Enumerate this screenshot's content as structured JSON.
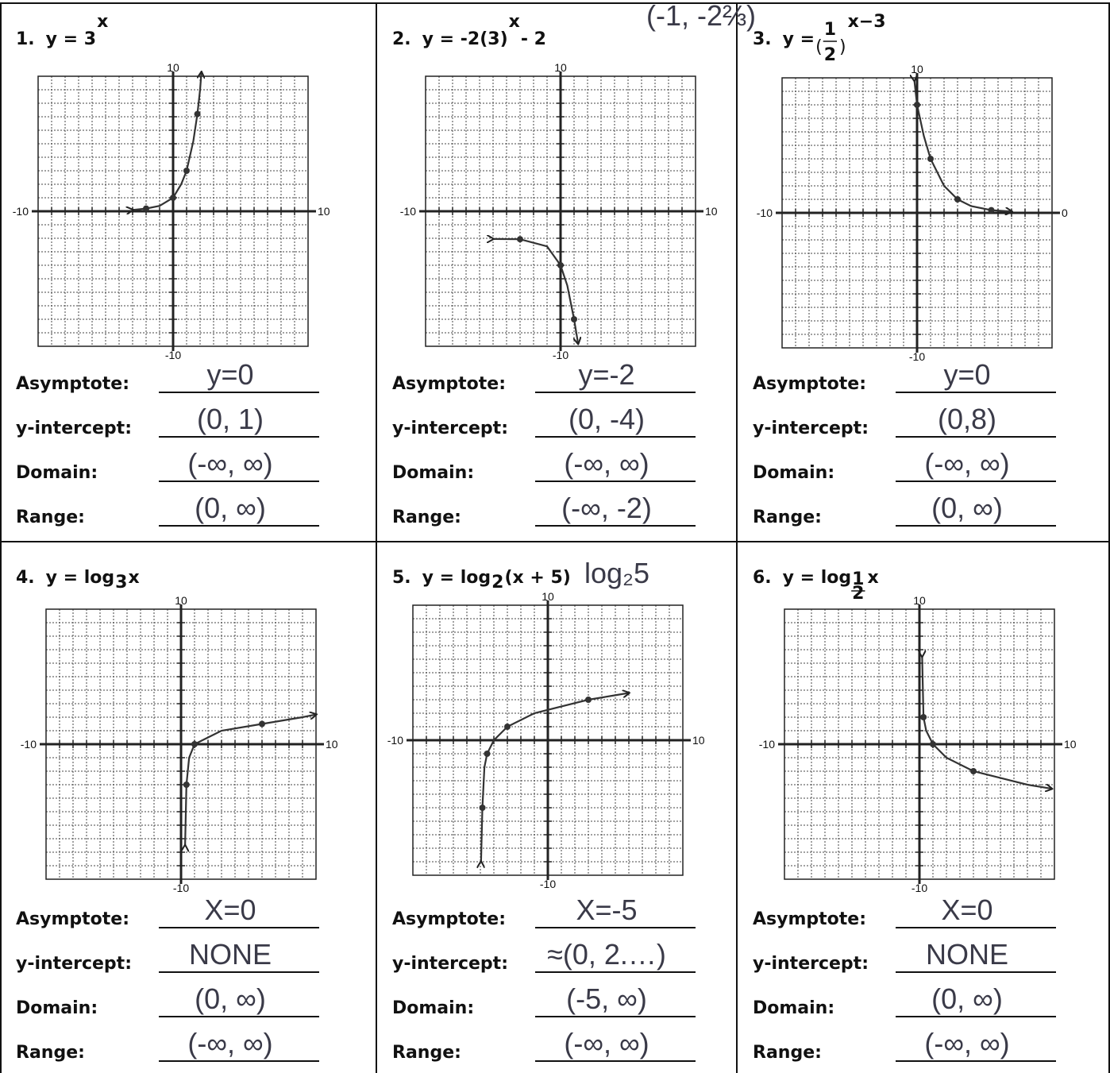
{
  "problems": [
    {
      "number": "1.",
      "equation": [
        {
          "text": "y = 3",
          "style": "plain"
        },
        {
          "text": "x",
          "style": "sup"
        }
      ],
      "axis_labels": {
        "top": "10",
        "bottom": "-10",
        "left": "-10",
        "right": "10"
      },
      "fields": [
        {
          "label": "Asymptote:",
          "answer": "y=0"
        },
        {
          "label": "y-intercept:",
          "answer": "(0, 1)"
        },
        {
          "label": "Domain:",
          "answer": "(-∞, ∞)"
        },
        {
          "label": "Range:",
          "answer": "(0, ∞)"
        }
      ]
    },
    {
      "number": "2.",
      "equation": [
        {
          "text": "y = -2(3)",
          "style": "plain"
        },
        {
          "text": "x",
          "style": "sup"
        },
        {
          "text": " - 2",
          "style": "plain"
        }
      ],
      "note": "(-1, -2⅔)",
      "axis_labels": {
        "top": "10",
        "bottom": "-10",
        "left": "-10",
        "right": "10"
      },
      "fields": [
        {
          "label": "Asymptote:",
          "answer": "y=-2"
        },
        {
          "label": "y-intercept:",
          "answer": "(0, -4)"
        },
        {
          "label": "Domain:",
          "answer": "(-∞, ∞)"
        },
        {
          "label": "Range:",
          "answer": "(-∞, -2)"
        }
      ]
    },
    {
      "number": "3.",
      "equation": [
        {
          "text": "y = ",
          "style": "plain"
        },
        {
          "text": "(",
          "style": "big"
        },
        {
          "text": "1",
          "style": "num"
        },
        {
          "text": "2",
          "style": "den"
        },
        {
          "text": ")",
          "style": "big"
        },
        {
          "text": "x−3",
          "style": "sup"
        }
      ],
      "axis_labels": {
        "top": "10",
        "bottom": "-10",
        "left": "-10",
        "right": "0"
      },
      "fields": [
        {
          "label": "Asymptote:",
          "answer": "y=0"
        },
        {
          "label": "y-intercept:",
          "answer": "(0,8)"
        },
        {
          "label": "Domain:",
          "answer": "(-∞, ∞)"
        },
        {
          "label": "Range:",
          "answer": "(0, ∞)"
        }
      ]
    },
    {
      "number": "4.",
      "equation": [
        {
          "text": "y = log",
          "style": "plain"
        },
        {
          "text": "3",
          "style": "sub"
        },
        {
          "text": "x",
          "style": "plain"
        }
      ],
      "axis_labels": {
        "top": "10",
        "bottom": "-10",
        "left": "-10",
        "right": "10"
      },
      "fields": [
        {
          "label": "Asymptote:",
          "answer": "X=0"
        },
        {
          "label": "y-intercept:",
          "answer": "NONE"
        },
        {
          "label": "Domain:",
          "answer": "(0, ∞)"
        },
        {
          "label": "Range:",
          "answer": "(-∞, ∞)"
        }
      ]
    },
    {
      "number": "5.",
      "equation": [
        {
          "text": "y = log",
          "style": "plain"
        },
        {
          "text": "2",
          "style": "sub"
        },
        {
          "text": "(x + 5)",
          "style": "plain"
        }
      ],
      "note": "log₂5",
      "axis_labels": {
        "top": "10",
        "bottom": "-10",
        "left": "-10",
        "right": "10"
      },
      "fields": [
        {
          "label": "Asymptote:",
          "answer": "X=-5"
        },
        {
          "label": "y-intercept:",
          "answer": "≈(0, 2.…)"
        },
        {
          "label": "Domain:",
          "answer": "(-5, ∞)"
        },
        {
          "label": "Range:",
          "answer": "(-∞, ∞)"
        }
      ]
    },
    {
      "number": "6.",
      "equation": [
        {
          "text": "y = log",
          "style": "plain"
        },
        {
          "text": "1",
          "style": "subnum"
        },
        {
          "text": "2",
          "style": "subden"
        },
        {
          "text": " x",
          "style": "plain"
        }
      ],
      "axis_labels": {
        "top": "10",
        "bottom": "-10",
        "left": "-10",
        "right": "10"
      },
      "fields": [
        {
          "label": "Asymptote:",
          "answer": "X=0"
        },
        {
          "label": "y-intercept:",
          "answer": "NONE"
        },
        {
          "label": "Domain:",
          "answer": "(0, ∞)"
        },
        {
          "label": "Range:",
          "answer": "(-∞, ∞)"
        }
      ]
    }
  ]
}
